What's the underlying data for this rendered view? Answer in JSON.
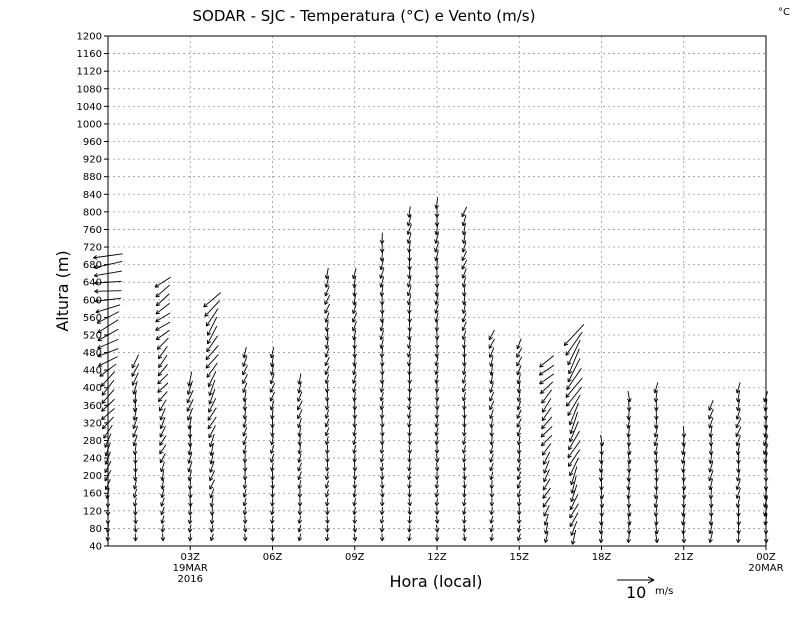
{
  "chart_data": {
    "type": "wind_profile",
    "title": "SODAR - SJC - Temperatura (°C) e Vento (m/s)",
    "unit_label": "°C",
    "xlabel": "Hora (local)",
    "ylabel": "Altura (m)",
    "ylim": [
      40,
      1200
    ],
    "y_tick_step": 40,
    "y_ticks": [
      "40",
      "80",
      "120",
      "160",
      "200",
      "240",
      "280",
      "320",
      "360",
      "400",
      "440",
      "480",
      "520",
      "560",
      "600",
      "640",
      "680",
      "720",
      "760",
      "800",
      "840",
      "880",
      "920",
      "960",
      "1000",
      "1040",
      "1080",
      "1120",
      "1160",
      "1200"
    ],
    "x_range_hours": [
      0,
      24
    ],
    "x_ticks": [
      {
        "hour": 3,
        "label": "03Z",
        "sub1": "19MAR",
        "sub2": "2016"
      },
      {
        "hour": 6,
        "label": "06Z"
      },
      {
        "hour": 9,
        "label": "09Z"
      },
      {
        "hour": 12,
        "label": "12Z"
      },
      {
        "hour": 15,
        "label": "15Z"
      },
      {
        "hour": 18,
        "label": "18Z"
      },
      {
        "hour": 21,
        "label": "21Z"
      },
      {
        "hour": 24,
        "label": "00Z",
        "sub1": "20MAR"
      }
    ],
    "grid": true,
    "reference_vector": {
      "value": "10",
      "unit": "m/s"
    },
    "profiles": [
      {
        "hour": 0.0,
        "top": 700,
        "dir_low": 180,
        "dir_high": 270,
        "spd_low": 2,
        "spd_high": 8
      },
      {
        "hour": 1.0,
        "top": 460,
        "dir_low": 180,
        "dir_high": 200,
        "spd_low": 2,
        "spd_high": 4
      },
      {
        "hour": 2.0,
        "top": 640,
        "dir_low": 185,
        "dir_high": 240,
        "spd_low": 2,
        "spd_high": 5
      },
      {
        "hour": 3.0,
        "top": 420,
        "dir_low": 180,
        "dir_high": 200,
        "spd_low": 2,
        "spd_high": 4
      },
      {
        "hour": 3.8,
        "top": 600,
        "dir_low": 190,
        "dir_high": 220,
        "spd_low": 2,
        "spd_high": 6
      },
      {
        "hour": 5.0,
        "top": 480,
        "dir_low": 180,
        "dir_high": 200,
        "spd_low": 2,
        "spd_high": 3
      },
      {
        "hour": 6.0,
        "top": 490,
        "dir_low": 180,
        "dir_high": 200,
        "spd_low": 2,
        "spd_high": 3
      },
      {
        "hour": 7.0,
        "top": 420,
        "dir_low": 185,
        "dir_high": 200,
        "spd_low": 2,
        "spd_high": 3
      },
      {
        "hour": 8.0,
        "top": 670,
        "dir_low": 185,
        "dir_high": 200,
        "spd_low": 2,
        "spd_high": 3
      },
      {
        "hour": 9.0,
        "top": 670,
        "dir_low": 180,
        "dir_high": 195,
        "spd_low": 2,
        "spd_high": 3
      },
      {
        "hour": 10.0,
        "top": 740,
        "dir_low": 180,
        "dir_high": 190,
        "spd_low": 2,
        "spd_high": 3
      },
      {
        "hour": 11.0,
        "top": 800,
        "dir_low": 180,
        "dir_high": 190,
        "spd_low": 2,
        "spd_high": 3
      },
      {
        "hour": 12.0,
        "top": 820,
        "dir_low": 180,
        "dir_high": 190,
        "spd_low": 2,
        "spd_high": 3
      },
      {
        "hour": 13.0,
        "top": 810,
        "dir_low": 180,
        "dir_high": 200,
        "spd_low": 2,
        "spd_high": 3
      },
      {
        "hour": 14.0,
        "top": 520,
        "dir_low": 185,
        "dir_high": 200,
        "spd_low": 2,
        "spd_high": 3
      },
      {
        "hour": 15.0,
        "top": 510,
        "dir_low": 190,
        "dir_high": 200,
        "spd_low": 2,
        "spd_high": 3
      },
      {
        "hour": 16.0,
        "top": 470,
        "dir_low": 200,
        "dir_high": 230,
        "spd_low": 3,
        "spd_high": 5
      },
      {
        "hour": 17.0,
        "top": 530,
        "dir_low": 200,
        "dir_high": 215,
        "spd_low": 4,
        "spd_high": 8
      },
      {
        "hour": 18.0,
        "top": 290,
        "dir_low": 180,
        "dir_high": 180,
        "spd_low": 3,
        "spd_high": 3
      },
      {
        "hour": 19.0,
        "top": 380,
        "dir_low": 180,
        "dir_high": 180,
        "spd_low": 3,
        "spd_high": 3
      },
      {
        "hour": 20.0,
        "top": 400,
        "dir_low": 180,
        "dir_high": 190,
        "spd_low": 3,
        "spd_high": 3
      },
      {
        "hour": 21.0,
        "top": 300,
        "dir_low": 180,
        "dir_high": 185,
        "spd_low": 3,
        "spd_high": 3
      },
      {
        "hour": 22.0,
        "top": 370,
        "dir_low": 185,
        "dir_high": 195,
        "spd_low": 3,
        "spd_high": 3
      },
      {
        "hour": 23.0,
        "top": 400,
        "dir_low": 185,
        "dir_high": 200,
        "spd_low": 3,
        "spd_high": 3
      },
      {
        "hour": 24.0,
        "top": 380,
        "dir_low": 185,
        "dir_high": 195,
        "spd_low": 3,
        "spd_high": 3
      }
    ]
  }
}
